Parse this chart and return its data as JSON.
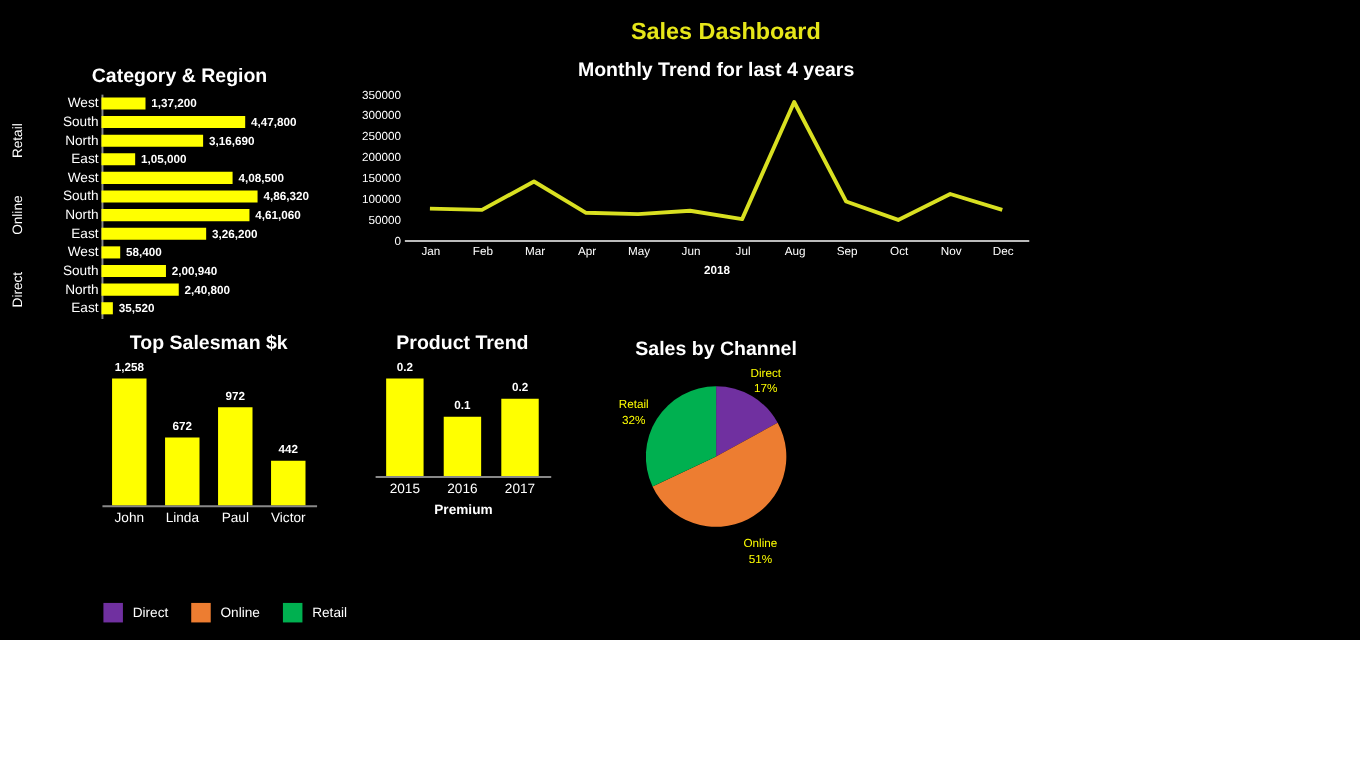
{
  "chart_data": [
    {
      "type": "other",
      "title": "Sales Dashboard"
    },
    {
      "type": "bar",
      "orientation": "horizontal",
      "title": "Category & Region",
      "color": "#ffff00",
      "categories": [
        "West",
        "South",
        "North",
        "East",
        "West",
        "South",
        "North",
        "East",
        "West",
        "South",
        "North",
        "East"
      ],
      "values": [
        137200,
        447800,
        316690,
        105000,
        408500,
        486320,
        461060,
        326200,
        58400,
        200940,
        240800,
        35520
      ],
      "value_labels": [
        "1,37,200",
        "4,47,800",
        "3,16,690",
        "1,05,000",
        "4,08,500",
        "4,86,320",
        "4,61,060",
        "3,26,200",
        "58,400",
        "2,00,940",
        "2,40,800",
        "35,520"
      ],
      "annotations": [
        "Retail",
        "Online",
        "Direct"
      ]
    },
    {
      "type": "line",
      "title": "Monthly Trend for last 4 years",
      "xlabel": "2018",
      "color": "#d9e021",
      "categories": [
        "Jan",
        "Feb",
        "Mar",
        "Apr",
        "May",
        "Jun",
        "Jul",
        "Aug",
        "Sep",
        "Oct",
        "Nov",
        "Dec"
      ],
      "values": [
        75000,
        72000,
        140000,
        65000,
        62000,
        70000,
        50000,
        330000,
        92000,
        48000,
        110000,
        72000
      ],
      "ylim": [
        0,
        350000
      ],
      "yticks": [
        0,
        50000,
        100000,
        150000,
        200000,
        250000,
        300000,
        350000
      ],
      "grid": false
    },
    {
      "type": "bar",
      "title": "Top Salesman $k",
      "color": "#ffff00",
      "categories": [
        "John",
        "Linda",
        "Paul",
        "Victor"
      ],
      "values": [
        1258,
        672,
        972,
        442
      ],
      "value_labels": [
        "1,258",
        "672",
        "972",
        "442"
      ]
    },
    {
      "type": "bar",
      "title": "Product Trend",
      "xlabel": "Premium",
      "color": "#ffff00",
      "categories": [
        "2015",
        "2016",
        "2017"
      ],
      "values": [
        0.24,
        0.146,
        0.19
      ],
      "value_labels": [
        "0.2",
        "0.1",
        "0.2"
      ]
    },
    {
      "type": "pie",
      "title": "Sales by Channel",
      "categories": [
        "Direct",
        "Online",
        "Retail"
      ],
      "values": [
        17,
        51,
        32
      ],
      "colors": [
        "#7030a0",
        "#ed7d31",
        "#00b050"
      ],
      "value_labels": [
        "17%",
        "51%",
        "32%"
      ],
      "legend": "bottom"
    }
  ]
}
